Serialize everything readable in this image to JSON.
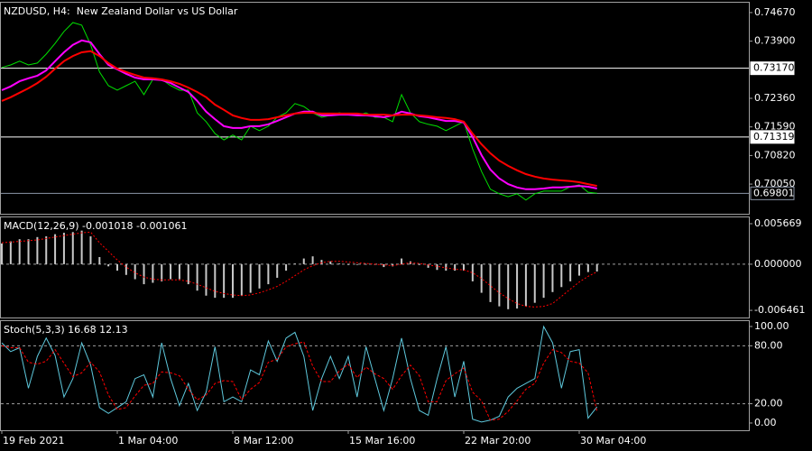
{
  "chart_data": [
    {
      "type": "line",
      "title": "NZDUSD, H4:  New Zealand Dollar vs US Dollar",
      "series": [
        {
          "color": "#00e000",
          "style": "solid",
          "values": [
            0.7319,
            0.7326,
            0.7336,
            0.7326,
            0.7331,
            0.7355,
            0.7384,
            0.7416,
            0.744,
            0.7433,
            0.738,
            0.7307,
            0.727,
            0.7258,
            0.727,
            0.7282,
            0.7246,
            0.7287,
            0.7287,
            0.727,
            0.7258,
            0.7258,
            0.7197,
            0.7173,
            0.7141,
            0.7124,
            0.7137,
            0.7124,
            0.7161,
            0.7149,
            0.7161,
            0.7185,
            0.7197,
            0.7222,
            0.7214,
            0.7197,
            0.7185,
            0.719,
            0.7197,
            0.7192,
            0.719,
            0.7197,
            0.7185,
            0.7185,
            0.7173,
            0.7246,
            0.7197,
            0.7173,
            0.7166,
            0.7161,
            0.7149,
            0.7161,
            0.7173,
            0.71,
            0.7039,
            0.6991,
            0.6979,
            0.6971,
            0.6979,
            0.6962,
            0.6979,
            0.6986,
            0.6986,
            0.6986,
            0.6998,
            0.7003,
            0.6983,
            0.69801
          ]
        },
        {
          "color": "#ff00ff",
          "style": "thick",
          "values": [
            0.7258,
            0.7268,
            0.7282,
            0.729,
            0.7297,
            0.7311,
            0.7336,
            0.736,
            0.738,
            0.7392,
            0.7387,
            0.7355,
            0.7326,
            0.7314,
            0.7302,
            0.7292,
            0.7287,
            0.7287,
            0.7285,
            0.7277,
            0.7265,
            0.7253,
            0.7229,
            0.72,
            0.718,
            0.7161,
            0.7156,
            0.7156,
            0.7161,
            0.7161,
            0.7166,
            0.7175,
            0.7185,
            0.7195,
            0.72,
            0.72,
            0.719,
            0.719,
            0.7192,
            0.7192,
            0.719,
            0.719,
            0.7188,
            0.7185,
            0.719,
            0.72,
            0.7195,
            0.7188,
            0.7185,
            0.718,
            0.7175,
            0.7175,
            0.7171,
            0.7132,
            0.7083,
            0.7044,
            0.702,
            0.7005,
            0.6996,
            0.6991,
            0.6991,
            0.6993,
            0.6996,
            0.6996,
            0.6998,
            0.7,
            0.6998,
            0.6993
          ]
        },
        {
          "color": "#ff0000",
          "style": "thick",
          "values": [
            0.7229,
            0.7239,
            0.7251,
            0.7263,
            0.7277,
            0.7294,
            0.7316,
            0.7336,
            0.735,
            0.736,
            0.7363,
            0.735,
            0.7331,
            0.7316,
            0.7307,
            0.7299,
            0.7292,
            0.729,
            0.7287,
            0.7282,
            0.7275,
            0.7265,
            0.7253,
            0.7239,
            0.7219,
            0.7205,
            0.719,
            0.7183,
            0.7178,
            0.7178,
            0.718,
            0.7185,
            0.719,
            0.7195,
            0.7197,
            0.7197,
            0.7195,
            0.7195,
            0.7195,
            0.7195,
            0.7195,
            0.7192,
            0.7192,
            0.7192,
            0.719,
            0.7192,
            0.7192,
            0.719,
            0.7188,
            0.7185,
            0.7183,
            0.718,
            0.7173,
            0.7141,
            0.7112,
            0.7088,
            0.7068,
            0.7054,
            0.7042,
            0.7032,
            0.7025,
            0.702,
            0.7017,
            0.7015,
            0.7013,
            0.701,
            0.7005,
            0.7
          ]
        }
      ],
      "ylim": [
        0.6925,
        0.7496
      ],
      "yticks": [
        {
          "value": 0.7467,
          "label": "0.74670"
        },
        {
          "value": 0.739,
          "label": "0.73900"
        },
        {
          "value": 0.7236,
          "label": "0.72360"
        },
        {
          "value": 0.7159,
          "label": "0.71590"
        },
        {
          "value": 0.7082,
          "label": "0.70820"
        },
        {
          "value": 0.7005,
          "label": "0.70050"
        }
      ],
      "price_lines": [
        {
          "value": 0.7317,
          "label": "0.73170",
          "color": "#ffffff"
        },
        {
          "value": 0.71319,
          "label": "0.71319",
          "color": "#ffffff"
        },
        {
          "value": 0.69801,
          "label": "0.69801",
          "color": "#8c96a8"
        }
      ]
    },
    {
      "type": "macd",
      "title": "MACD(12,26,9) -0.001018 -0.001061",
      "series": [
        {
          "color": "#c8c8c8",
          "style": "histogram",
          "values": [
            0.0029,
            0.0032,
            0.0035,
            0.0035,
            0.0038,
            0.0039,
            0.0042,
            0.0044,
            0.0045,
            0.0047,
            0.0039,
            0.001,
            -0.0003,
            -0.0009,
            -0.0015,
            -0.0021,
            -0.0028,
            -0.0026,
            -0.0024,
            -0.0021,
            -0.0021,
            -0.0028,
            -0.0037,
            -0.0044,
            -0.0047,
            -0.0047,
            -0.0047,
            -0.0044,
            -0.004,
            -0.0034,
            -0.0028,
            -0.0019,
            -0.0009,
            0.0001,
            0.0008,
            0.0011,
            0.0006,
            0.0004,
            0.0001,
            -0.0001,
            -0.0001,
            0,
            -0.0001,
            -0.0004,
            -0.0003,
            0.0008,
            0.0004,
            -0.0001,
            -0.0005,
            -0.0008,
            -0.0009,
            -0.0009,
            -0.0009,
            -0.0024,
            -0.004,
            -0.0053,
            -0.0059,
            -0.0063,
            -0.0062,
            -0.0059,
            -0.0054,
            -0.0047,
            -0.0039,
            -0.0032,
            -0.0024,
            -0.0016,
            -0.0011,
            -0.001018
          ]
        },
        {
          "color": "#ff0000",
          "style": "dotted",
          "values": [
            0.003,
            0.0031,
            0.0032,
            0.0033,
            0.0034,
            0.0036,
            0.0038,
            0.004,
            0.0042,
            0.0044,
            0.0045,
            0.003,
            0.0018,
            0.0006,
            -0.0004,
            -0.0012,
            -0.0018,
            -0.0021,
            -0.0022,
            -0.0022,
            -0.0022,
            -0.0024,
            -0.0028,
            -0.0033,
            -0.0038,
            -0.0041,
            -0.0043,
            -0.0044,
            -0.0043,
            -0.004,
            -0.0036,
            -0.0031,
            -0.0024,
            -0.0016,
            -0.0008,
            -0.0002,
            0.0002,
            0.0004,
            0.0004,
            0.0003,
            0.0002,
            0.0001,
            0,
            -0.0001,
            -0.0002,
            0,
            0.0002,
            0.0001,
            -0.0001,
            -0.0003,
            -0.0005,
            -0.0007,
            -0.0008,
            -0.0012,
            -0.002,
            -0.003,
            -0.004,
            -0.0048,
            -0.0055,
            -0.0059,
            -0.006,
            -0.0059,
            -0.0055,
            -0.0045,
            -0.0035,
            -0.0025,
            -0.0017,
            -0.001061
          ]
        }
      ],
      "ylim": [
        -0.00746,
        0.00668
      ],
      "yticks": [
        0.005669,
        {
          "value": 0,
          "label": "0.000000"
        },
        -0.006461
      ],
      "levels": [
        0
      ]
    },
    {
      "type": "stoch",
      "title": "Stoch(5,3,3) 16.68 12.13",
      "categories": [
        "19 Feb 2021",
        null,
        null,
        null,
        null,
        null,
        null,
        null,
        null,
        null,
        null,
        null,
        null,
        "1 Mar 04:00",
        null,
        null,
        null,
        null,
        null,
        null,
        null,
        null,
        null,
        null,
        null,
        null,
        "8 Mar 12:00",
        null,
        null,
        null,
        null,
        null,
        null,
        null,
        null,
        null,
        null,
        null,
        null,
        "15 Mar 16:00",
        null,
        null,
        null,
        null,
        null,
        null,
        null,
        null,
        null,
        null,
        null,
        null,
        "22 Mar 20:00",
        null,
        null,
        null,
        null,
        null,
        null,
        null,
        null,
        null,
        null,
        null,
        null,
        "30 Mar 04:00",
        null,
        null
      ],
      "series": [
        {
          "color": "#5ec8dc",
          "style": "solid",
          "values": [
            83,
            74,
            78,
            36,
            69,
            88,
            70,
            27,
            46,
            83,
            60,
            16,
            10,
            16,
            22,
            46,
            50,
            27,
            83,
            46,
            18,
            41,
            13,
            32,
            79,
            22,
            27,
            22,
            55,
            50,
            85,
            64,
            88,
            94,
            69,
            13,
            46,
            69,
            46,
            69,
            27,
            79,
            46,
            13,
            46,
            88,
            46,
            13,
            8,
            46,
            79,
            27,
            64,
            4,
            1,
            3,
            7,
            27,
            36,
            41,
            46,
            100,
            83,
            36,
            74,
            76,
            5,
            16.68
          ]
        },
        {
          "color": "#ff0000",
          "style": "dashed",
          "values": [
            80,
            78,
            78,
            63,
            61,
            64,
            76,
            62,
            48,
            52,
            63,
            53,
            29,
            14,
            16,
            28,
            39,
            41,
            53,
            52,
            49,
            35,
            24,
            29,
            41,
            44,
            43,
            24,
            35,
            42,
            63,
            66,
            79,
            82,
            84,
            59,
            43,
            43,
            54,
            61,
            47,
            58,
            51,
            46,
            35,
            49,
            60,
            49,
            22,
            22,
            44,
            51,
            57,
            32,
            23,
            3,
            4,
            12,
            23,
            35,
            41,
            62,
            76,
            73,
            64,
            62,
            52,
            12.13
          ]
        }
      ],
      "ylim": [
        -7.5,
        106.5
      ],
      "yticks": [
        {
          "value": 100,
          "label": "100.00"
        },
        {
          "value": 80,
          "label": "80.00"
        },
        {
          "value": 20,
          "label": "20.00"
        },
        {
          "value": 0,
          "label": "0.00"
        }
      ],
      "levels": [
        80,
        20
      ]
    }
  ]
}
